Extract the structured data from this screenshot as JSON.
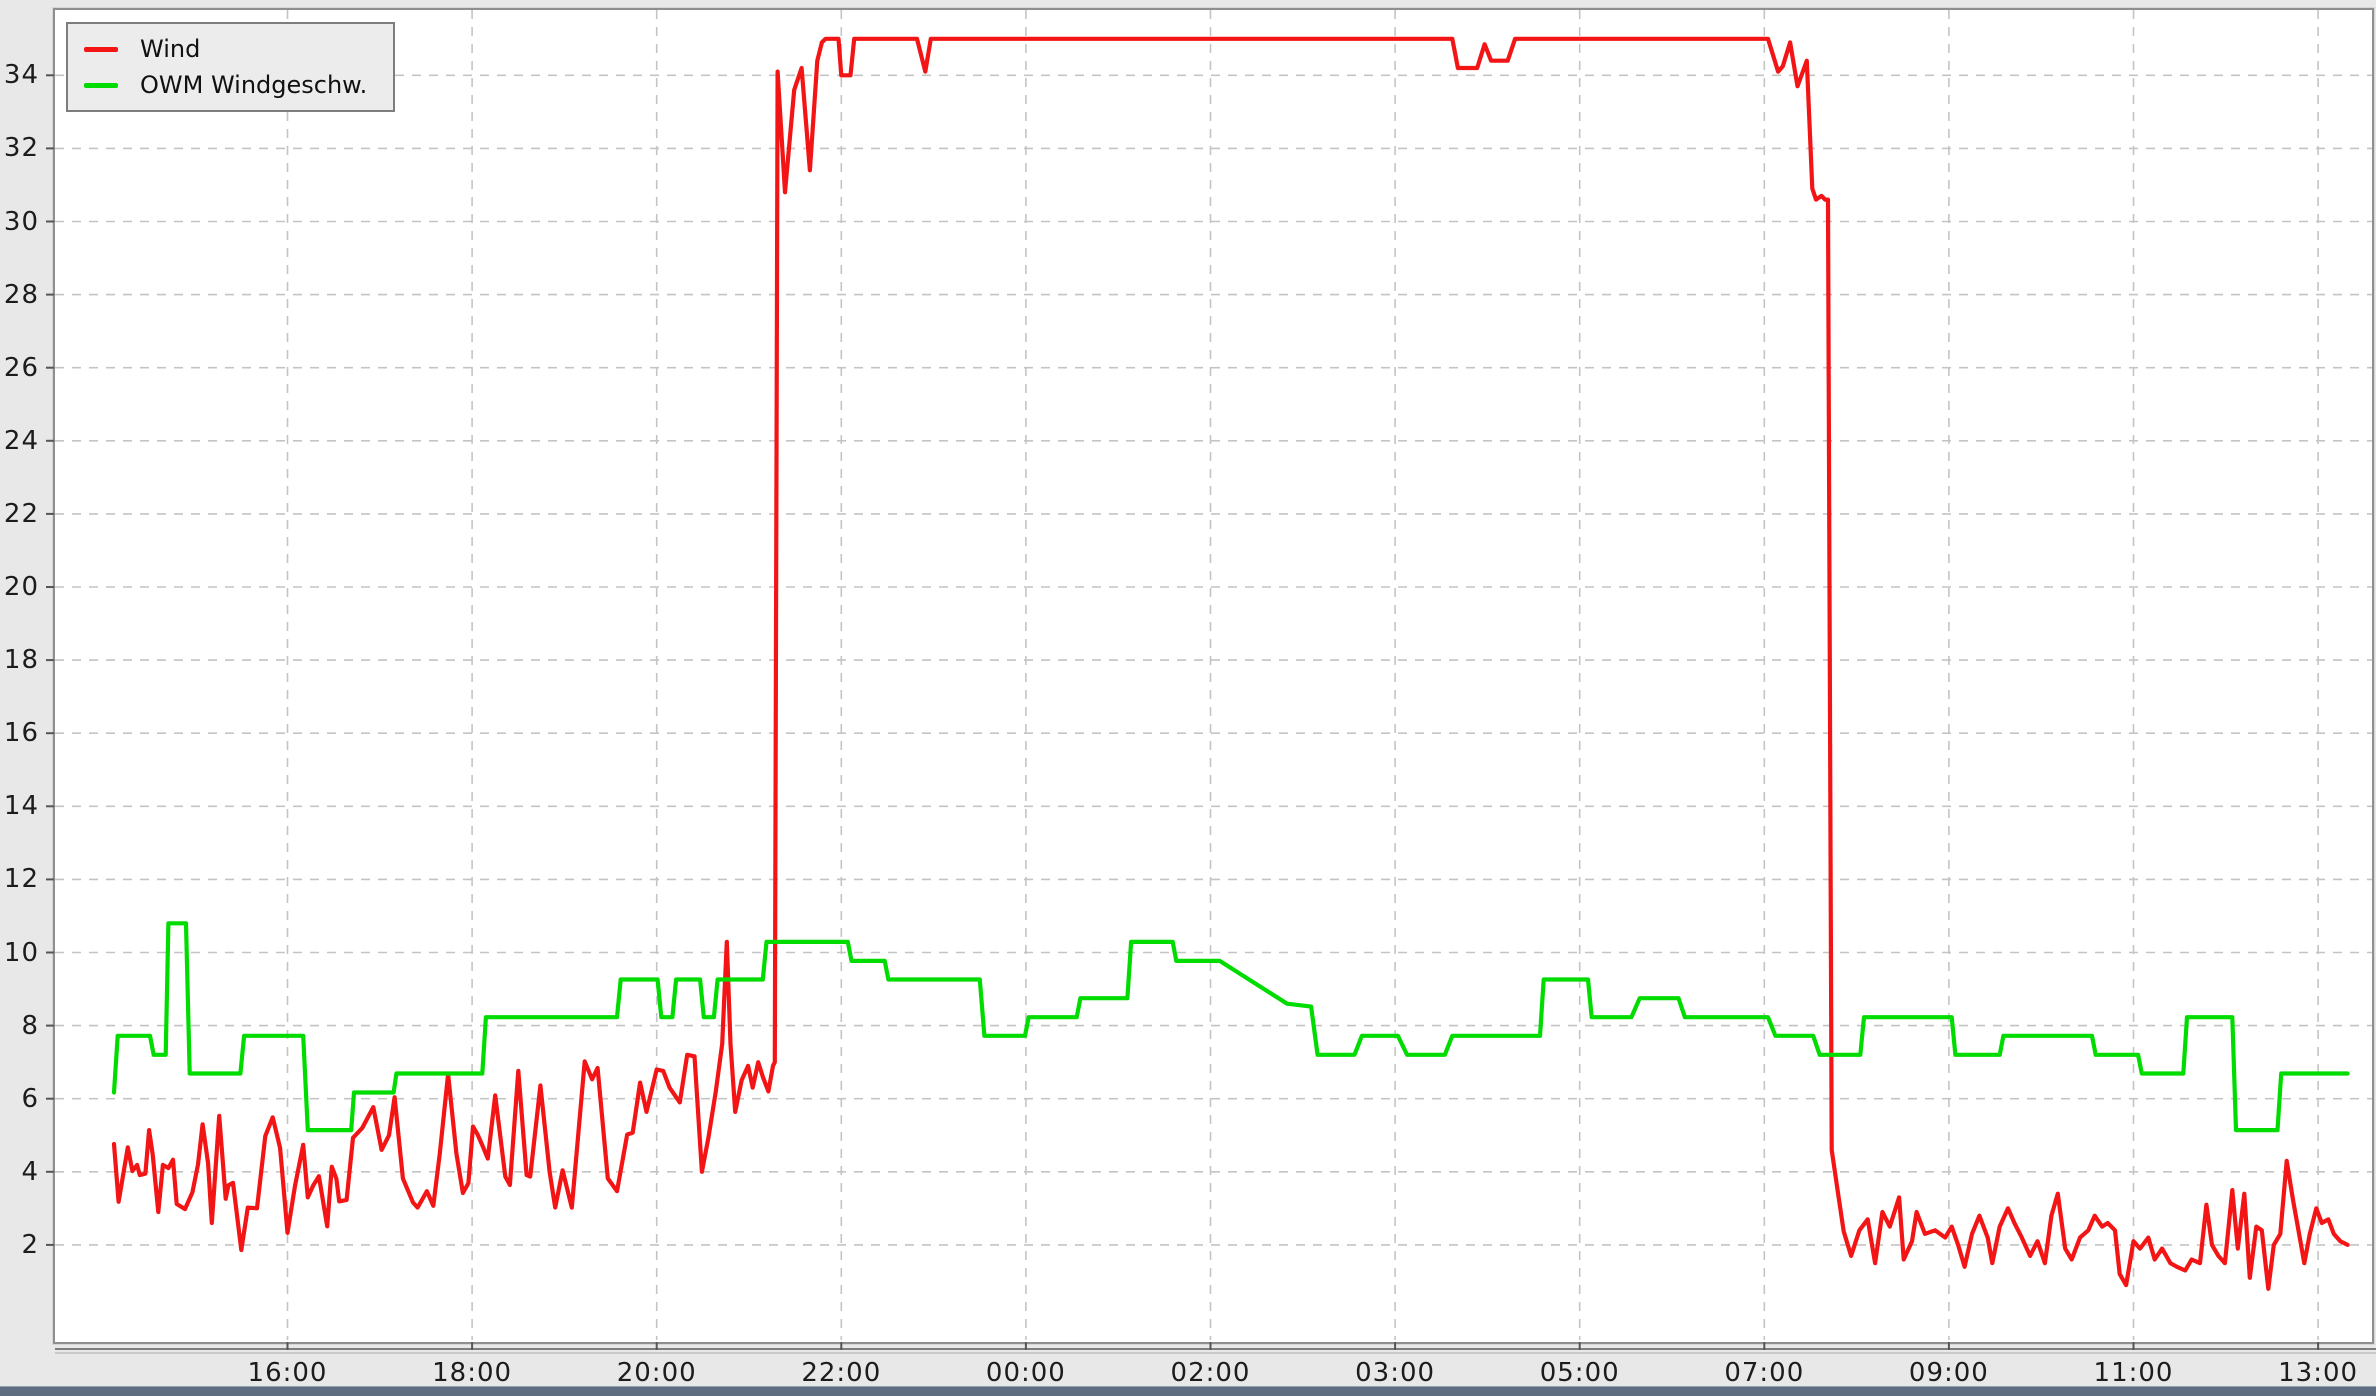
{
  "legend": {
    "items": [
      {
        "label": "Wind",
        "color": "#f31515"
      },
      {
        "label": "OWM Windgeschw.",
        "color": "#00dc00"
      }
    ]
  },
  "colors": {
    "background": "#e8e8e8",
    "plot_background": "#ffffff",
    "grid": "#c4c4c4",
    "axis": "#7d7d7d",
    "tick_text": "#1c1c1c",
    "wind_line": "#f31515",
    "owm_line": "#00dc00",
    "bottom_bar": "#5e6e80"
  },
  "chart_data": {
    "type": "line",
    "title": "",
    "xlabel": "",
    "ylabel": "",
    "grid": "dashed",
    "legend_position": "top-left",
    "x_axis": {
      "kind": "time",
      "note": "ticks every 2 real hours across a DST fall-back night (02:00 -> 03:00)",
      "tick_hours": [
        0,
        2,
        4,
        6,
        8,
        10,
        12,
        14,
        16,
        18,
        20,
        22
      ],
      "tick_labels": [
        "16:00",
        "18:00",
        "20:00",
        "22:00",
        "00:00",
        "02:00",
        "03:00",
        "05:00",
        "07:00",
        "09:00",
        "11:00",
        "13:00"
      ]
    },
    "y_axis": {
      "min": 0,
      "max": 35.8,
      "ticks": [
        2,
        4,
        6,
        8,
        10,
        12,
        14,
        16,
        18,
        20,
        22,
        24,
        26,
        28,
        30,
        32,
        34
      ]
    },
    "series": [
      {
        "name": "Wind",
        "color": "#f31515",
        "points": [
          [
            -1.88,
            4.76
          ],
          [
            -1.83,
            3.18
          ],
          [
            -1.73,
            4.67
          ],
          [
            -1.68,
            4.02
          ],
          [
            -1.63,
            4.19
          ],
          [
            -1.6,
            3.91
          ],
          [
            -1.54,
            3.95
          ],
          [
            -1.5,
            5.14
          ],
          [
            -1.46,
            4.47
          ],
          [
            -1.4,
            2.9
          ],
          [
            -1.35,
            4.19
          ],
          [
            -1.29,
            4.1
          ],
          [
            -1.24,
            4.33
          ],
          [
            -1.2,
            3.12
          ],
          [
            -1.11,
            2.98
          ],
          [
            -1.03,
            3.44
          ],
          [
            -0.97,
            4.2
          ],
          [
            -0.92,
            5.3
          ],
          [
            -0.86,
            4.23
          ],
          [
            -0.82,
            2.6
          ],
          [
            -0.74,
            5.53
          ],
          [
            -0.67,
            3.26
          ],
          [
            -0.64,
            3.63
          ],
          [
            -0.59,
            3.7
          ],
          [
            -0.5,
            1.86
          ],
          [
            -0.43,
            3.02
          ],
          [
            -0.33,
            3.0
          ],
          [
            -0.24,
            4.98
          ],
          [
            -0.16,
            5.49
          ],
          [
            -0.08,
            4.65
          ],
          [
            0.0,
            2.33
          ],
          [
            0.08,
            3.6
          ],
          [
            0.17,
            4.74
          ],
          [
            0.22,
            3.3
          ],
          [
            0.28,
            3.63
          ],
          [
            0.34,
            3.88
          ],
          [
            0.43,
            2.51
          ],
          [
            0.48,
            4.14
          ],
          [
            0.53,
            3.81
          ],
          [
            0.56,
            3.19
          ],
          [
            0.64,
            3.23
          ],
          [
            0.71,
            4.93
          ],
          [
            0.81,
            5.2
          ],
          [
            0.93,
            5.77
          ],
          [
            1.02,
            4.6
          ],
          [
            1.1,
            5.0
          ],
          [
            1.16,
            6.04
          ],
          [
            1.25,
            3.82
          ],
          [
            1.36,
            3.16
          ],
          [
            1.41,
            3.02
          ],
          [
            1.51,
            3.47
          ],
          [
            1.58,
            3.07
          ],
          [
            1.65,
            4.5
          ],
          [
            1.74,
            6.67
          ],
          [
            1.83,
            4.5
          ],
          [
            1.9,
            3.42
          ],
          [
            1.96,
            3.69
          ],
          [
            2.01,
            5.24
          ],
          [
            2.06,
            5.02
          ],
          [
            2.12,
            4.67
          ],
          [
            2.17,
            4.36
          ],
          [
            2.25,
            6.09
          ],
          [
            2.36,
            3.87
          ],
          [
            2.41,
            3.64
          ],
          [
            2.5,
            6.76
          ],
          [
            2.59,
            3.91
          ],
          [
            2.63,
            3.87
          ],
          [
            2.74,
            6.36
          ],
          [
            2.84,
            4.0
          ],
          [
            2.9,
            3.02
          ],
          [
            2.98,
            4.04
          ],
          [
            3.08,
            3.02
          ],
          [
            3.22,
            7.02
          ],
          [
            3.3,
            6.53
          ],
          [
            3.36,
            6.84
          ],
          [
            3.47,
            3.82
          ],
          [
            3.57,
            3.47
          ],
          [
            3.68,
            5.02
          ],
          [
            3.74,
            5.07
          ],
          [
            3.82,
            6.44
          ],
          [
            3.89,
            5.64
          ],
          [
            4.0,
            6.8
          ],
          [
            4.07,
            6.76
          ],
          [
            4.14,
            6.3
          ],
          [
            4.25,
            5.9
          ],
          [
            4.33,
            7.2
          ],
          [
            4.41,
            7.16
          ],
          [
            4.49,
            4.0
          ],
          [
            4.56,
            4.93
          ],
          [
            4.64,
            6.2
          ],
          [
            4.71,
            7.5
          ],
          [
            4.76,
            10.29
          ],
          [
            4.8,
            7.5
          ],
          [
            4.85,
            5.64
          ],
          [
            4.92,
            6.5
          ],
          [
            4.99,
            6.9
          ],
          [
            5.04,
            6.3
          ],
          [
            5.1,
            7.0
          ],
          [
            5.15,
            6.6
          ],
          [
            5.21,
            6.2
          ],
          [
            5.26,
            6.9
          ],
          [
            5.28,
            7.0
          ],
          [
            5.31,
            34.1
          ],
          [
            5.39,
            30.8
          ],
          [
            5.49,
            33.6
          ],
          [
            5.57,
            34.2
          ],
          [
            5.66,
            31.4
          ],
          [
            5.74,
            34.4
          ],
          [
            5.79,
            34.9
          ],
          [
            5.83,
            35.0
          ],
          [
            5.97,
            35.0
          ],
          [
            6.0,
            34.0
          ],
          [
            6.1,
            34.0
          ],
          [
            6.14,
            35.0
          ],
          [
            6.82,
            35.0
          ],
          [
            6.91,
            34.1
          ],
          [
            6.97,
            35.0
          ],
          [
            12.62,
            35.0
          ],
          [
            12.68,
            34.2
          ],
          [
            12.89,
            34.2
          ],
          [
            12.97,
            34.85
          ],
          [
            13.04,
            34.4
          ],
          [
            13.22,
            34.4
          ],
          [
            13.3,
            35.0
          ],
          [
            16.04,
            35.0
          ],
          [
            16.15,
            34.1
          ],
          [
            16.2,
            34.25
          ],
          [
            16.28,
            34.9
          ],
          [
            16.36,
            33.7
          ],
          [
            16.46,
            34.4
          ],
          [
            16.52,
            30.9
          ],
          [
            16.56,
            30.6
          ],
          [
            16.62,
            30.7
          ],
          [
            16.66,
            30.6
          ],
          [
            16.69,
            30.6
          ],
          [
            16.73,
            4.6
          ],
          [
            16.8,
            3.4
          ],
          [
            16.86,
            2.37
          ],
          [
            16.94,
            1.7
          ],
          [
            17.03,
            2.4
          ],
          [
            17.12,
            2.7
          ],
          [
            17.2,
            1.5
          ],
          [
            17.28,
            2.9
          ],
          [
            17.36,
            2.5
          ],
          [
            17.46,
            3.3
          ],
          [
            17.51,
            1.6
          ],
          [
            17.6,
            2.1
          ],
          [
            17.65,
            2.9
          ],
          [
            17.74,
            2.3
          ],
          [
            17.85,
            2.4
          ],
          [
            17.96,
            2.2
          ],
          [
            18.03,
            2.5
          ],
          [
            18.1,
            2.0
          ],
          [
            18.17,
            1.4
          ],
          [
            18.25,
            2.3
          ],
          [
            18.33,
            2.8
          ],
          [
            18.42,
            2.2
          ],
          [
            18.47,
            1.5
          ],
          [
            18.55,
            2.5
          ],
          [
            18.64,
            3.0
          ],
          [
            18.71,
            2.6
          ],
          [
            18.79,
            2.2
          ],
          [
            18.88,
            1.7
          ],
          [
            18.96,
            2.1
          ],
          [
            19.04,
            1.5
          ],
          [
            19.11,
            2.8
          ],
          [
            19.18,
            3.4
          ],
          [
            19.26,
            1.9
          ],
          [
            19.33,
            1.6
          ],
          [
            19.42,
            2.2
          ],
          [
            19.51,
            2.4
          ],
          [
            19.58,
            2.8
          ],
          [
            19.66,
            2.5
          ],
          [
            19.72,
            2.6
          ],
          [
            19.8,
            2.4
          ],
          [
            19.85,
            1.2
          ],
          [
            19.92,
            0.9
          ],
          [
            20.0,
            2.1
          ],
          [
            20.07,
            1.9
          ],
          [
            20.16,
            2.2
          ],
          [
            20.23,
            1.6
          ],
          [
            20.31,
            1.9
          ],
          [
            20.4,
            1.5
          ],
          [
            20.47,
            1.4
          ],
          [
            20.56,
            1.3
          ],
          [
            20.63,
            1.6
          ],
          [
            20.72,
            1.5
          ],
          [
            20.79,
            3.1
          ],
          [
            20.85,
            2.0
          ],
          [
            20.92,
            1.7
          ],
          [
            20.99,
            1.5
          ],
          [
            21.07,
            3.5
          ],
          [
            21.13,
            1.9
          ],
          [
            21.2,
            3.4
          ],
          [
            21.26,
            1.1
          ],
          [
            21.33,
            2.5
          ],
          [
            21.39,
            2.4
          ],
          [
            21.46,
            0.8
          ],
          [
            21.52,
            2.0
          ],
          [
            21.59,
            2.3
          ],
          [
            21.66,
            4.3
          ],
          [
            21.73,
            3.2
          ],
          [
            21.78,
            2.5
          ],
          [
            21.85,
            1.5
          ],
          [
            21.91,
            2.3
          ],
          [
            21.98,
            3.0
          ],
          [
            22.04,
            2.6
          ],
          [
            22.11,
            2.7
          ],
          [
            22.17,
            2.3
          ],
          [
            22.24,
            2.1
          ],
          [
            22.32,
            2.0
          ]
        ]
      },
      {
        "name": "OWM Windgeschw.",
        "color": "#00dc00",
        "points": [
          [
            -1.88,
            6.17
          ],
          [
            -1.84,
            7.72
          ],
          [
            -1.49,
            7.72
          ],
          [
            -1.45,
            7.2
          ],
          [
            -1.32,
            7.2
          ],
          [
            -1.29,
            10.8
          ],
          [
            -1.1,
            10.8
          ],
          [
            -1.06,
            6.69
          ],
          [
            -0.51,
            6.69
          ],
          [
            -0.47,
            7.72
          ],
          [
            0.17,
            7.72
          ],
          [
            0.22,
            5.14
          ],
          [
            0.69,
            5.14
          ],
          [
            0.72,
            6.17
          ],
          [
            1.15,
            6.17
          ],
          [
            1.18,
            6.69
          ],
          [
            2.11,
            6.69
          ],
          [
            2.15,
            8.23
          ],
          [
            3.57,
            8.23
          ],
          [
            3.61,
            9.26
          ],
          [
            4.01,
            9.26
          ],
          [
            4.05,
            8.23
          ],
          [
            4.17,
            8.23
          ],
          [
            4.21,
            9.26
          ],
          [
            4.47,
            9.26
          ],
          [
            4.51,
            8.23
          ],
          [
            4.62,
            8.23
          ],
          [
            4.66,
            9.26
          ],
          [
            5.15,
            9.26
          ],
          [
            5.19,
            10.29
          ],
          [
            6.07,
            10.29
          ],
          [
            6.11,
            9.77
          ],
          [
            6.47,
            9.77
          ],
          [
            6.51,
            9.26
          ],
          [
            7.5,
            9.26
          ],
          [
            7.55,
            7.72
          ],
          [
            7.99,
            7.72
          ],
          [
            8.03,
            8.23
          ],
          [
            8.55,
            8.23
          ],
          [
            8.59,
            8.75
          ],
          [
            9.1,
            8.75
          ],
          [
            9.14,
            10.29
          ],
          [
            9.59,
            10.29
          ],
          [
            9.63,
            9.77
          ],
          [
            10.1,
            9.77
          ],
          [
            10.83,
            8.6
          ],
          [
            11.09,
            8.52
          ],
          [
            11.16,
            7.2
          ],
          [
            11.56,
            7.2
          ],
          [
            11.64,
            7.72
          ],
          [
            12.03,
            7.72
          ],
          [
            12.13,
            7.2
          ],
          [
            12.54,
            7.2
          ],
          [
            12.62,
            7.72
          ],
          [
            13.57,
            7.72
          ],
          [
            13.61,
            9.26
          ],
          [
            14.09,
            9.26
          ],
          [
            14.13,
            8.23
          ],
          [
            14.56,
            8.23
          ],
          [
            14.65,
            8.75
          ],
          [
            15.07,
            8.75
          ],
          [
            15.14,
            8.23
          ],
          [
            16.04,
            8.23
          ],
          [
            16.12,
            7.72
          ],
          [
            16.53,
            7.72
          ],
          [
            16.6,
            7.2
          ],
          [
            17.04,
            7.2
          ],
          [
            17.08,
            8.23
          ],
          [
            18.03,
            8.23
          ],
          [
            18.07,
            7.2
          ],
          [
            18.55,
            7.2
          ],
          [
            18.59,
            7.72
          ],
          [
            19.55,
            7.72
          ],
          [
            19.59,
            7.2
          ],
          [
            20.05,
            7.2
          ],
          [
            20.09,
            6.69
          ],
          [
            20.54,
            6.69
          ],
          [
            20.58,
            8.23
          ],
          [
            21.07,
            8.23
          ],
          [
            21.11,
            5.14
          ],
          [
            21.56,
            5.14
          ],
          [
            21.6,
            6.69
          ],
          [
            22.32,
            6.69
          ]
        ]
      }
    ]
  }
}
